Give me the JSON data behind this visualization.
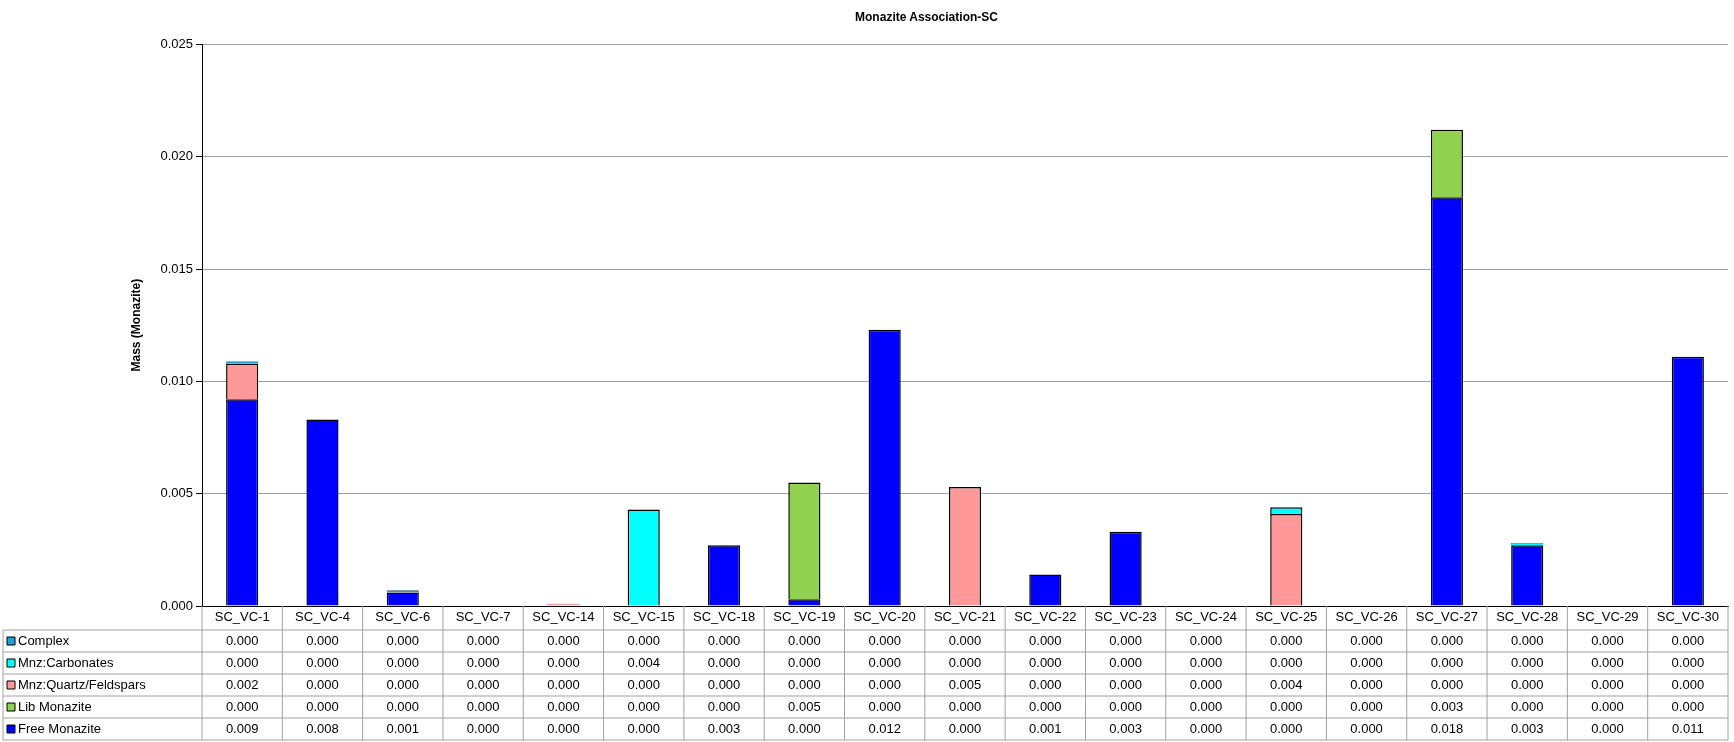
{
  "chart_data": {
    "type": "bar",
    "title": "Monazite Association-SC",
    "ylabel": "Mass (Monazite)",
    "stacked": true,
    "grid": "y",
    "legend": "bottom",
    "data_labels": false,
    "categories": [
      "SC_VC-1",
      "SC_VC-4",
      "SC_VC-6",
      "SC_VC-7",
      "SC_VC-14",
      "SC_VC-15",
      "SC_VC-18",
      "SC_VC-19",
      "SC_VC-20",
      "SC_VC-21",
      "SC_VC-22",
      "SC_VC-23",
      "SC_VC-24",
      "SC_VC-25",
      "SC_VC-26",
      "SC_VC-27",
      "SC_VC-28",
      "SC_VC-29",
      "SC_VC-30"
    ],
    "ylim": [
      0,
      0.025
    ],
    "yticks": [
      {
        "value": 0,
        "label": "0.000"
      },
      {
        "value": 0.005,
        "label": "0.005"
      },
      {
        "value": 0.01,
        "label": "0.010"
      },
      {
        "value": 0.015,
        "label": "0.015"
      },
      {
        "value": 0.02,
        "label": "0.020"
      },
      {
        "value": 0.025,
        "label": "0.025"
      }
    ],
    "series": [
      {
        "name": "Free Monazite",
        "color": "#0000ff",
        "values": [
          0.0092,
          0.0083,
          0.0006,
          0,
          0,
          0,
          0.0027,
          0.0003,
          0.0123,
          0,
          0.0014,
          0.0033,
          0,
          0,
          0,
          0.0182,
          0.0027,
          0,
          0.0111
        ],
        "value_labels": [
          "0.009",
          "0.008",
          "0.001",
          "0.000",
          "0.000",
          "0.000",
          "0.003",
          "0.000",
          "0.012",
          "0.000",
          "0.001",
          "0.003",
          "0.000",
          "0.000",
          "0.000",
          "0.018",
          "0.003",
          "0.000",
          "0.011"
        ]
      },
      {
        "name": "Lib Monazite",
        "color": "#92d050",
        "values": [
          0,
          0,
          0,
          0,
          0,
          0,
          0,
          0.0052,
          0,
          0,
          0,
          0,
          0,
          0,
          0,
          0.003,
          0,
          0,
          0
        ],
        "value_labels": [
          "0.000",
          "0.000",
          "0.000",
          "0.000",
          "0.000",
          "0.000",
          "0.000",
          "0.005",
          "0.000",
          "0.000",
          "0.000",
          "0.000",
          "0.000",
          "0.000",
          "0.000",
          "0.003",
          "0.000",
          "0.000",
          "0.000"
        ]
      },
      {
        "name": "Mnz:Quartz/Feldspars",
        "color": "#ff9999",
        "values": [
          0.0016,
          0,
          0,
          0,
          0.0001,
          0,
          0,
          0,
          0,
          0.0053,
          0,
          0,
          0,
          0.0041,
          0,
          0,
          0,
          0,
          0
        ],
        "value_labels": [
          "0.002",
          "0.000",
          "0.000",
          "0.000",
          "0.000",
          "0.000",
          "0.000",
          "0.000",
          "0.000",
          "0.005",
          "0.000",
          "0.000",
          "0.000",
          "0.004",
          "0.000",
          "0.000",
          "0.000",
          "0.000",
          "0.000"
        ]
      },
      {
        "name": "Mnz:Carbonates",
        "color": "#00ffff",
        "values": [
          0,
          0,
          0,
          0,
          0,
          0.0043,
          0,
          0,
          0,
          0,
          0,
          0,
          0,
          0.0003,
          0,
          0,
          0.0001,
          0,
          0
        ],
        "value_labels": [
          "0.000",
          "0.000",
          "0.000",
          "0.000",
          "0.000",
          "0.004",
          "0.000",
          "0.000",
          "0.000",
          "0.000",
          "0.000",
          "0.000",
          "0.000",
          "0.000",
          "0.000",
          "0.000",
          "0.000",
          "0.000",
          "0.000"
        ]
      },
      {
        "name": "Complex",
        "color": "#1f9fd8",
        "values": [
          0.0001,
          0,
          0.0001,
          0,
          0,
          0,
          0,
          0,
          0,
          0,
          0,
          0,
          0,
          0,
          0,
          0,
          0,
          0,
          0
        ],
        "value_labels": [
          "0.000",
          "0.000",
          "0.000",
          "0.000",
          "0.000",
          "0.000",
          "0.000",
          "0.000",
          "0.000",
          "0.000",
          "0.000",
          "0.000",
          "0.000",
          "0.000",
          "0.000",
          "0.000",
          "0.000",
          "0.000",
          "0.000"
        ]
      }
    ]
  }
}
